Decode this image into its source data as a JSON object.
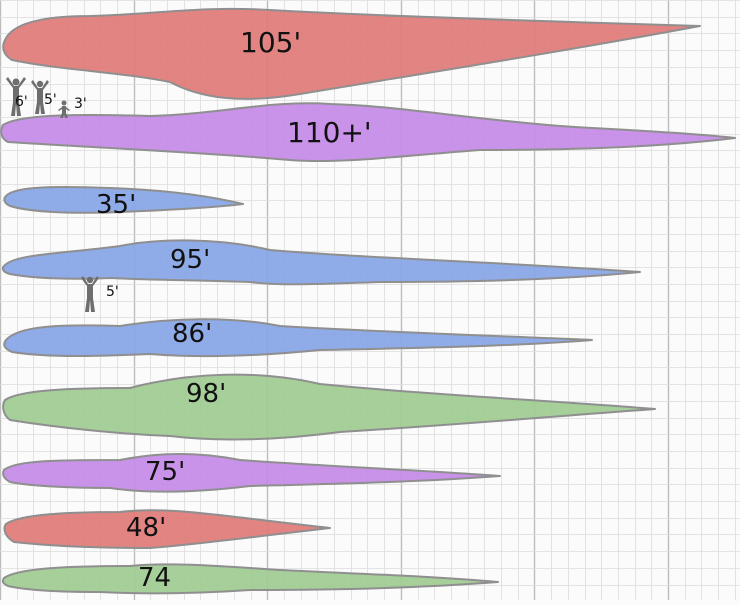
{
  "colors": {
    "paper": "#fbfbfb",
    "grid_minor": "#dcdcdc",
    "grid_major": "#bdbdbd",
    "red": "#e07a77",
    "purple": "#c38ae6",
    "blue": "#86a4e6",
    "green": "#9fcb91",
    "outline": "#8f8f8f",
    "person": "#6e6e6e"
  },
  "creatures": [
    {
      "length_label": "105'",
      "color": "red",
      "size_ft": 105
    },
    {
      "length_label": "110+'",
      "color": "purple",
      "size_ft": 110
    },
    {
      "length_label": "35'",
      "color": "blue",
      "size_ft": 35
    },
    {
      "length_label": "95'",
      "color": "blue",
      "size_ft": 95
    },
    {
      "length_label": "86'",
      "color": "blue",
      "size_ft": 86
    },
    {
      "length_label": "98'",
      "color": "green",
      "size_ft": 98
    },
    {
      "length_label": "75'",
      "color": "purple",
      "size_ft": 75
    },
    {
      "length_label": "48'",
      "color": "red",
      "size_ft": 48
    },
    {
      "length_label": "74",
      "color": "green",
      "size_ft": 74
    }
  ],
  "people": [
    {
      "height_label": "6'",
      "height_ft": 6
    },
    {
      "height_label": "5'",
      "height_ft": 5
    },
    {
      "height_label": "3'",
      "height_ft": 3
    },
    {
      "height_label": "5'",
      "height_ft": 5
    }
  ]
}
